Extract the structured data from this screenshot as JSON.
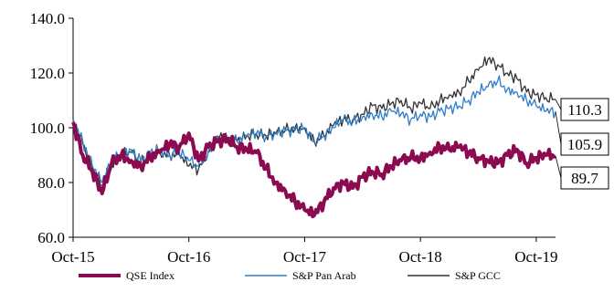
{
  "chart_data": {
    "type": "line",
    "title": "",
    "xlabel": "",
    "ylabel": "",
    "ylim": [
      60,
      140
    ],
    "yticks": [
      "60.0",
      "80.0",
      "100.0",
      "120.0",
      "140.0"
    ],
    "ytick_values": [
      60,
      80,
      100,
      120,
      140
    ],
    "xlim": [
      "2015-10",
      "2019-12"
    ],
    "xticks": [
      "Oct-15",
      "Oct-16",
      "Oct-17",
      "Oct-18",
      "Oct-19"
    ],
    "xtick_values": [
      "2015-10",
      "2016-10",
      "2017-10",
      "2018-10",
      "2019-10"
    ],
    "grid": false,
    "legend_position": "bottom",
    "x": [
      "2015-10",
      "2015-11",
      "2015-12",
      "2016-01",
      "2016-02",
      "2016-03",
      "2016-04",
      "2016-05",
      "2016-06",
      "2016-07",
      "2016-08",
      "2016-09",
      "2016-10",
      "2016-11",
      "2016-12",
      "2017-01",
      "2017-02",
      "2017-03",
      "2017-04",
      "2017-05",
      "2017-06",
      "2017-07",
      "2017-08",
      "2017-09",
      "2017-10",
      "2017-11",
      "2017-12",
      "2018-01",
      "2018-02",
      "2018-03",
      "2018-04",
      "2018-05",
      "2018-06",
      "2018-07",
      "2018-08",
      "2018-09",
      "2018-10",
      "2018-11",
      "2018-12",
      "2019-01",
      "2019-02",
      "2019-03",
      "2019-04",
      "2019-05",
      "2019-06",
      "2019-07",
      "2019-08",
      "2019-09",
      "2019-10",
      "2019-11",
      "2019-12"
    ],
    "series": [
      {
        "name": "QSE Index",
        "color": "#8b0a50",
        "end_label": "89.7",
        "values": [
          102.0,
          90.0,
          84.0,
          76.0,
          87.0,
          90.0,
          88.0,
          86.0,
          89.0,
          91.0,
          94.0,
          93.0,
          98.0,
          88.0,
          93.0,
          95.0,
          96.0,
          93.0,
          92.0,
          91.0,
          85.0,
          80.0,
          77.0,
          73.0,
          70.0,
          68.0,
          73.0,
          78.0,
          80.0,
          78.0,
          82.0,
          84.0,
          83.0,
          86.0,
          88.0,
          89.0,
          89.0,
          91.0,
          93.0,
          92.0,
          93.0,
          91.0,
          89.0,
          88.0,
          87.0,
          90.0,
          92.0,
          87.0,
          89.0,
          90.0,
          89.7
        ]
      },
      {
        "name": "S&P Pan Arab",
        "color": "#2e7dc9",
        "end_label": "105.9",
        "values": [
          103.0,
          95.0,
          86.0,
          80.0,
          88.0,
          91.0,
          92.0,
          88.0,
          91.0,
          92.0,
          90.0,
          91.0,
          88.0,
          86.0,
          91.0,
          97.0,
          96.0,
          95.0,
          97.0,
          98.0,
          97.0,
          98.0,
          99.0,
          99.0,
          100.0,
          95.0,
          97.0,
          100.0,
          103.0,
          102.0,
          104.0,
          105.0,
          104.0,
          106.0,
          105.0,
          103.0,
          105.0,
          104.0,
          106.0,
          107.0,
          108.0,
          110.0,
          113.0,
          115.0,
          117.0,
          114.0,
          113.0,
          110.0,
          108.0,
          106.0,
          105.9
        ]
      },
      {
        "name": "S&P GCC",
        "color": "#333333",
        "end_label": "110.3",
        "values": [
          103.0,
          94.0,
          85.0,
          79.0,
          87.0,
          90.0,
          91.0,
          87.0,
          90.0,
          91.0,
          90.0,
          90.0,
          86.0,
          85.0,
          91.0,
          97.0,
          96.0,
          95.0,
          97.0,
          98.0,
          97.0,
          98.0,
          99.0,
          100.0,
          100.0,
          95.0,
          97.0,
          101.0,
          103.0,
          103.0,
          105.0,
          108.0,
          107.0,
          109.0,
          110.0,
          107.0,
          109.0,
          107.0,
          110.0,
          112.0,
          113.0,
          117.0,
          121.0,
          125.0,
          123.0,
          120.0,
          118.0,
          113.0,
          112.0,
          111.0,
          110.3
        ]
      }
    ]
  }
}
